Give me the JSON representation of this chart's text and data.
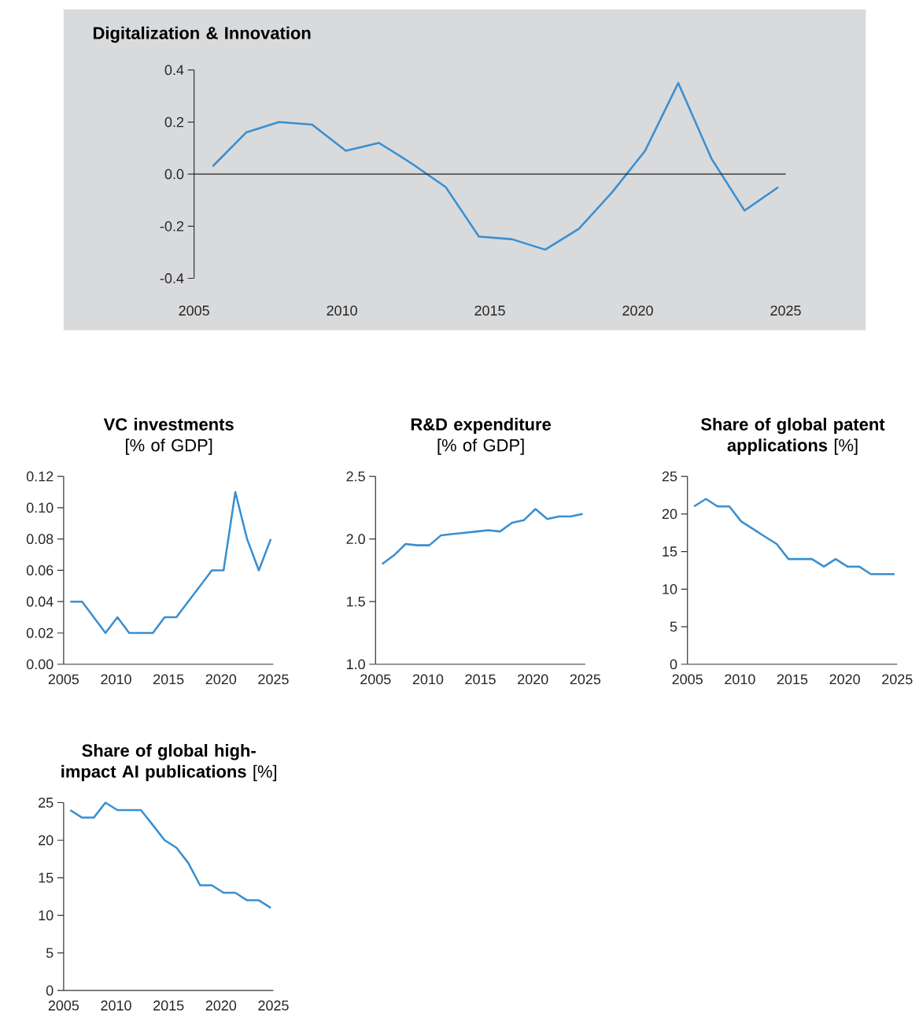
{
  "chart_data": [
    {
      "type": "line",
      "title": "Digitalization & Innovation",
      "x": [
        2005.63,
        2006.76,
        2007.87,
        2008.99,
        2010.13,
        2011.25,
        2012.37,
        2013.51,
        2014.63,
        2015.75,
        2016.87,
        2018.01,
        2019.13,
        2020.25,
        2021.37,
        2022.49,
        2023.61,
        2024.75
      ],
      "values": [
        0.03,
        0.16,
        0.2,
        0.19,
        0.09,
        0.12,
        0.04,
        -0.05,
        -0.24,
        -0.25,
        -0.29,
        -0.21,
        -0.07,
        0.09,
        0.35,
        0.06,
        -0.14,
        -0.05
      ],
      "color": "#3a8fd0",
      "xlim": [
        2005,
        2025
      ],
      "xticks": [
        2005,
        2010,
        2015,
        2020,
        2025
      ],
      "ylim": [
        -0.4,
        0.4
      ],
      "yticks": [
        -0.4,
        -0.2,
        {
          "value": 0,
          "label": "0.0"
        },
        0.2,
        0.4
      ],
      "ref_lines": [
        {
          "axis": "y",
          "value": 0,
          "color": "#222222"
        }
      ]
    },
    {
      "type": "line",
      "title": "VC investments",
      "subtitle": "[% of GDP]",
      "x": [
        2005.63,
        2006.76,
        2007.87,
        2008.99,
        2010.13,
        2011.25,
        2012.37,
        2013.51,
        2014.63,
        2015.75,
        2016.87,
        2018.01,
        2019.13,
        2020.25,
        2021.37,
        2022.49,
        2023.61,
        2024.75
      ],
      "values": [
        0.04,
        0.04,
        0.03,
        0.02,
        0.03,
        0.02,
        0.02,
        0.02,
        0.03,
        0.03,
        0.04,
        0.05,
        0.06,
        0.06,
        0.11,
        0.08,
        0.06,
        0.08
      ],
      "color": "#3a8fd0",
      "xlim": [
        2005,
        2025
      ],
      "xticks": [
        2005,
        2010,
        2015,
        2020,
        2025
      ],
      "ylim": [
        0,
        0.12
      ],
      "yticks": [
        {
          "value": 0,
          "label": "0.00"
        },
        {
          "value": 0.02,
          "label": "0.02"
        },
        {
          "value": 0.04,
          "label": "0.04"
        },
        {
          "value": 0.06,
          "label": "0.06"
        },
        {
          "value": 0.08,
          "label": "0.08"
        },
        {
          "value": 0.1,
          "label": "0.10"
        },
        0.12
      ]
    },
    {
      "type": "line",
      "title": "R&D expenditure",
      "subtitle": "[% of GDP]",
      "x": [
        2005.63,
        2006.76,
        2007.87,
        2008.99,
        2010.13,
        2011.25,
        2012.37,
        2013.51,
        2014.63,
        2015.75,
        2016.87,
        2018.01,
        2019.13,
        2020.25,
        2021.37,
        2022.49,
        2023.61,
        2024.75
      ],
      "values": [
        1.8,
        1.87,
        1.96,
        1.95,
        1.95,
        2.03,
        2.04,
        2.05,
        2.06,
        2.07,
        2.06,
        2.13,
        2.15,
        2.24,
        2.16,
        2.18,
        2.18,
        2.2
      ],
      "color": "#3a8fd0",
      "xlim": [
        2005,
        2025
      ],
      "xticks": [
        2005,
        2010,
        2015,
        2020,
        2025
      ],
      "ylim": [
        1,
        2.5
      ],
      "yticks": [
        {
          "value": 1,
          "label": "1.0"
        },
        1.5,
        {
          "value": 2,
          "label": "2.0"
        },
        2.5
      ]
    },
    {
      "type": "line",
      "title": "**Share of global patent applications** [%]",
      "x": [
        2005.63,
        2006.76,
        2007.87,
        2008.99,
        2010.13,
        2011.25,
        2012.37,
        2013.51,
        2014.63,
        2015.75,
        2016.87,
        2018.01,
        2019.13,
        2020.25,
        2021.37,
        2022.49,
        2023.61,
        2024.75
      ],
      "values": [
        21,
        22,
        21,
        21,
        19,
        18,
        17,
        16,
        14,
        14,
        14,
        13,
        14,
        13,
        13,
        12,
        12,
        12
      ],
      "color": "#3a8fd0",
      "xlim": [
        2005,
        2025
      ],
      "xticks": [
        2005,
        2010,
        2015,
        2020,
        2025
      ],
      "ylim": [
        0,
        25
      ],
      "yticks": [
        0,
        5,
        10,
        15,
        20,
        25
      ]
    },
    {
      "type": "line",
      "title": "**Share of global high-impact AI publications** [%]",
      "x": [
        2005.63,
        2006.76,
        2007.87,
        2008.99,
        2010.13,
        2011.25,
        2012.37,
        2013.51,
        2014.63,
        2015.75,
        2016.87,
        2018.01,
        2019.13,
        2020.25,
        2021.37,
        2022.49,
        2023.61,
        2024.75
      ],
      "values": [
        24,
        23,
        23,
        25,
        24,
        24,
        24,
        22,
        20,
        19,
        17,
        14,
        14,
        13,
        13,
        12,
        12,
        11
      ],
      "color": "#3a8fd0",
      "xlim": [
        2005,
        2025
      ],
      "xticks": [
        2005,
        2010,
        2015,
        2020,
        2025
      ],
      "ylim": [
        0,
        25
      ],
      "yticks": [
        0,
        5,
        10,
        15,
        20,
        25
      ]
    }
  ]
}
